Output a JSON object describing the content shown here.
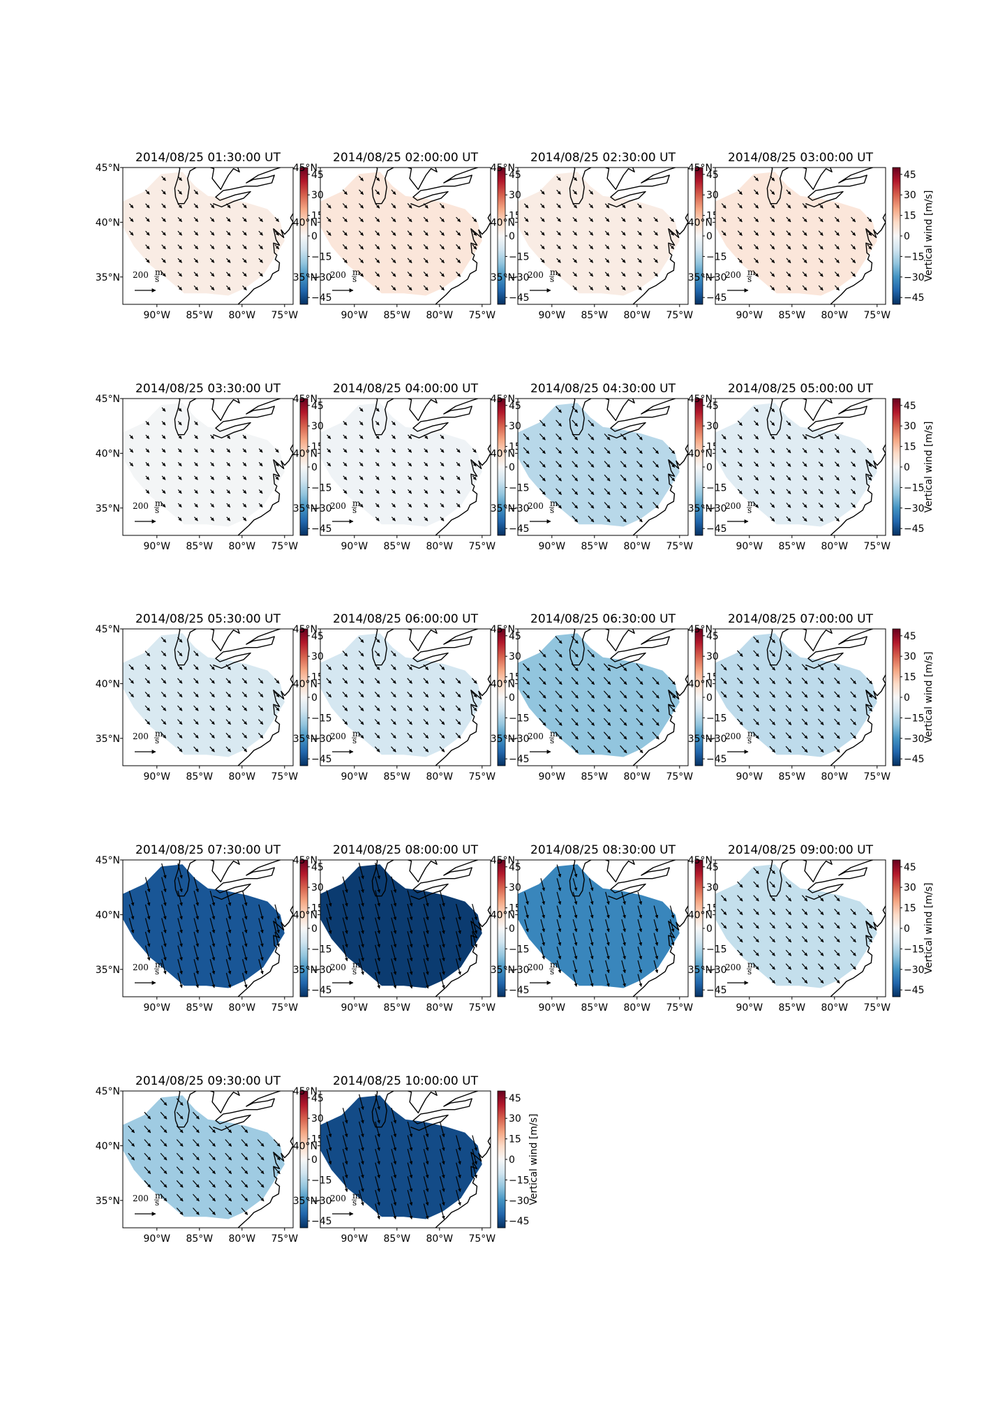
{
  "chart_data": {
    "type": "map-grid",
    "panel_titles": [
      "2014/08/25 01:30:00 UT",
      "2014/08/25 02:00:00 UT",
      "2014/08/25 02:30:00 UT",
      "2014/08/25 03:00:00 UT",
      "2014/08/25 03:30:00 UT",
      "2014/08/25 04:00:00 UT",
      "2014/08/25 04:30:00 UT",
      "2014/08/25 05:00:00 UT",
      "2014/08/25 05:30:00 UT",
      "2014/08/25 06:00:00 UT",
      "2014/08/25 06:30:00 UT",
      "2014/08/25 07:00:00 UT",
      "2014/08/25 07:30:00 UT",
      "2014/08/25 08:00:00 UT",
      "2014/08/25 08:30:00 UT",
      "2014/08/25 09:00:00 UT",
      "2014/08/25 09:30:00 UT",
      "2014/08/25 10:00:00 UT"
    ],
    "vertical_wind": [
      4,
      6,
      4,
      6,
      -1,
      -2,
      -14,
      -6,
      -8,
      -9,
      -20,
      -13,
      -43,
      -48,
      -33,
      -12,
      -18,
      -45
    ],
    "lon_ticks": [
      "90°W",
      "85°W",
      "80°W",
      "75°W"
    ],
    "lat_ticks": [
      "45°N",
      "40°N",
      "35°N"
    ],
    "colorbar": {
      "ticks": [
        "45",
        "30",
        "15",
        "0",
        "−15",
        "−30",
        "−45"
      ],
      "label": "Vertical wind [m/s]",
      "range": [
        -50,
        50
      ]
    },
    "reference_arrow": {
      "value": "200",
      "unit_top": "m",
      "unit_bottom": "s"
    }
  }
}
